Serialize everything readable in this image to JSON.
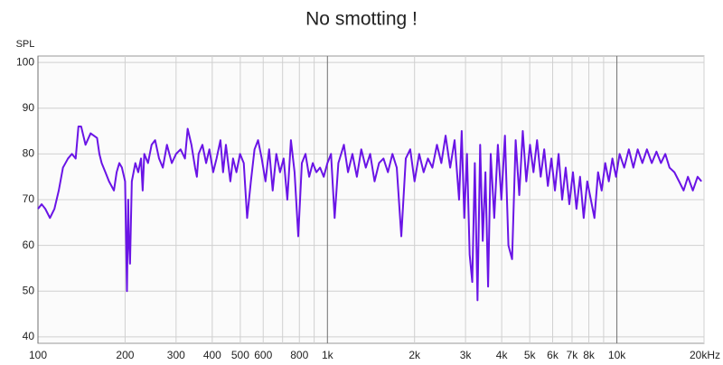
{
  "chart_data": {
    "type": "line",
    "title": "No smotting !",
    "y_label": "SPL",
    "log_x": true,
    "grid": true,
    "xlim": [
      100,
      20000
    ],
    "ylim": [
      38.6,
      101.4
    ],
    "yticks": [
      40,
      50,
      60,
      70,
      80,
      90,
      100
    ],
    "xticks": [
      100,
      200,
      300,
      400,
      500,
      600,
      800,
      {
        "value": 1000,
        "label": "1k"
      },
      {
        "value": 2000,
        "label": "2k"
      },
      {
        "value": 3000,
        "label": "3k"
      },
      {
        "value": 4000,
        "label": "4k"
      },
      {
        "value": 5000,
        "label": "5k"
      },
      {
        "value": 6000,
        "label": "6k"
      },
      {
        "value": 7000,
        "label": "7k"
      },
      {
        "value": 8000,
        "label": "8k"
      },
      {
        "value": 10000,
        "label": "10k"
      },
      {
        "value": 20000,
        "label": "20kHz"
      }
    ],
    "xminor": [
      700,
      900,
      9000
    ],
    "x": [
      100,
      103,
      106,
      110,
      114,
      118,
      122,
      127,
      131,
      135,
      138,
      141,
      146,
      152,
      160,
      163,
      166,
      171,
      176,
      183,
      187,
      191,
      195,
      200,
      203,
      205,
      206,
      208,
      211,
      214,
      217,
      222,
      227,
      230,
      233,
      240,
      247,
      254,
      262,
      270,
      279,
      290,
      300,
      311,
      322,
      329,
      339,
      349,
      354,
      359,
      370,
      381,
      391,
      403,
      414,
      427,
      436,
      446,
      462,
      472,
      485,
      499,
      514,
      528,
      544,
      560,
      576,
      593,
      611,
      629,
      647,
      666,
      686,
      706,
      727,
      748,
      770,
      793,
      816,
      840,
      865,
      890,
      916,
      943,
      971,
      1000,
      1029,
      1059,
      1091,
      1140,
      1178,
      1220,
      1264,
      1309,
      1357,
      1405,
      1455,
      1508,
      1562,
      1618,
      1677,
      1736,
      1800,
      1865,
      1932,
      2000,
      2075,
      2150,
      2225,
      2305,
      2390,
      2475,
      2560,
      2655,
      2750,
      2850,
      2910,
      2970,
      3035,
      3100,
      3165,
      3230,
      3300,
      3370,
      3440,
      3515,
      3590,
      3665,
      3770,
      3880,
      3990,
      4105,
      4220,
      4345,
      4470,
      4600,
      4730,
      4865,
      5010,
      5150,
      5300,
      5455,
      5610,
      5775,
      5940,
      6110,
      6290,
      6470,
      6655,
      6850,
      7050,
      7250,
      7460,
      7680,
      7900,
      8130,
      8365,
      8610,
      8860,
      9115,
      9380,
      9650,
      9930,
      10220,
      10600,
      11000,
      11400,
      11800,
      12250,
      12700,
      13200,
      13700,
      14200,
      14700,
      15200,
      15800,
      16400,
      17000,
      17600,
      18300,
      19000,
      19600
    ],
    "series": [
      {
        "color": "#6a14e6",
        "values": [
          68,
          69,
          68,
          66,
          68,
          72,
          77,
          79,
          80,
          79,
          86,
          86,
          82,
          84.5,
          83.5,
          80,
          78,
          76,
          74,
          72,
          76,
          78,
          77,
          74,
          50,
          70,
          62,
          56,
          74,
          76,
          78,
          76,
          79,
          72,
          80,
          78,
          82,
          83,
          79,
          77,
          82,
          78,
          80,
          81,
          79,
          85.5,
          82,
          77,
          75,
          80,
          82,
          78,
          81,
          76,
          79,
          83,
          76,
          82,
          74,
          79,
          76,
          80,
          78,
          66,
          74,
          81,
          83,
          79,
          74,
          81,
          72,
          80,
          76,
          79,
          70,
          83,
          76,
          62,
          78,
          80,
          75,
          78,
          76,
          77,
          75,
          78,
          80,
          66,
          78,
          82,
          76,
          80,
          75,
          81,
          77,
          80,
          74,
          78,
          79,
          76,
          80,
          77,
          62,
          79,
          81,
          74,
          80,
          76,
          79,
          77,
          82,
          78,
          84,
          77,
          83,
          70,
          85,
          66,
          80,
          58,
          52,
          78,
          48,
          82,
          61,
          76,
          51,
          80,
          66,
          82,
          70,
          84,
          60,
          57,
          83,
          71,
          85,
          74,
          82,
          76,
          83,
          75,
          81,
          73,
          79,
          72,
          80,
          70,
          77,
          69,
          76,
          68,
          75,
          66,
          74,
          70,
          66,
          76,
          72,
          78,
          74,
          79,
          75,
          80,
          77,
          81,
          77,
          81,
          78,
          81,
          78,
          80.5,
          78,
          80,
          77,
          76,
          74,
          72,
          75,
          72,
          75,
          74
        ]
      }
    ]
  }
}
